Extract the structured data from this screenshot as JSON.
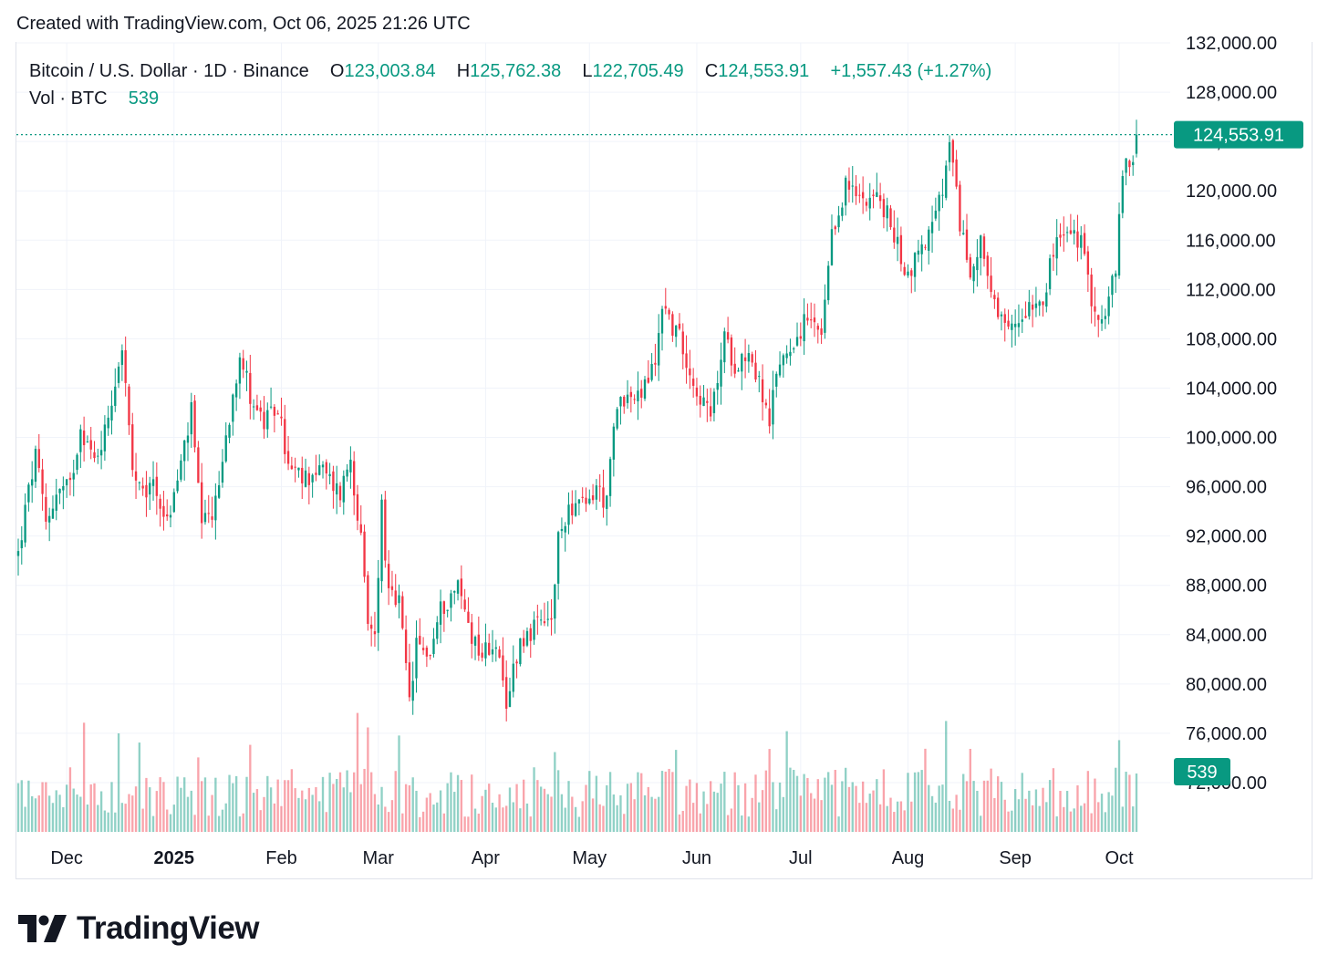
{
  "header": {
    "created_text": "Created with TradingView.com, Oct 06, 2025 21:26 UTC"
  },
  "legend": {
    "symbol": "Bitcoin / U.S. Dollar · 1D · Binance",
    "open_label": "O",
    "open": "123,003.84",
    "high_label": "H",
    "high": "125,762.38",
    "low_label": "L",
    "low": "122,705.49",
    "close_label": "C",
    "close": "124,553.91",
    "change": "+1,557.43 (+1.27%)",
    "vol_label": "Vol · BTC",
    "vol": "539"
  },
  "colors": {
    "up": "#089981",
    "down": "#f23645",
    "grid": "#f0f3fa",
    "text": "#131722"
  },
  "branding": {
    "name": "TradingView",
    "icon": "tradingview-logo-icon"
  },
  "chart_data": {
    "type": "candlestick",
    "title": "Bitcoin / U.S. Dollar · 1D · Binance",
    "x_range": [
      "2024-11-17",
      "2025-10-06"
    ],
    "ylim": [
      68000,
      132000
    ],
    "y_ticks": [
      "72,000.00",
      "76,000.00",
      "80,000.00",
      "84,000.00",
      "88,000.00",
      "92,000.00",
      "96,000.00",
      "100,000.00",
      "104,000.00",
      "108,000.00",
      "112,000.00",
      "116,000.00",
      "120,000.00",
      "124,000.00",
      "128,000.00",
      "132,000.00"
    ],
    "y_tick_values": [
      72000,
      76000,
      80000,
      84000,
      88000,
      92000,
      96000,
      100000,
      104000,
      108000,
      112000,
      116000,
      120000,
      124000,
      128000,
      132000
    ],
    "x_ticks": [
      {
        "label": "Dec",
        "date": "2024-12-01",
        "bold": false
      },
      {
        "label": "2025",
        "date": "2025-01-01",
        "bold": true
      },
      {
        "label": "Feb",
        "date": "2025-02-01",
        "bold": false
      },
      {
        "label": "Mar",
        "date": "2025-03-01",
        "bold": false
      },
      {
        "label": "Apr",
        "date": "2025-04-01",
        "bold": false
      },
      {
        "label": "May",
        "date": "2025-05-01",
        "bold": false
      },
      {
        "label": "Jun",
        "date": "2025-06-01",
        "bold": false
      },
      {
        "label": "Jul",
        "date": "2025-07-01",
        "bold": false
      },
      {
        "label": "Aug",
        "date": "2025-08-01",
        "bold": false
      },
      {
        "label": "Sep",
        "date": "2025-09-01",
        "bold": false
      },
      {
        "label": "Oct",
        "date": "2025-10-01",
        "bold": false
      }
    ],
    "last_price": 124553.91,
    "last_price_label": "124,553.91",
    "last_volume": 539,
    "last_volume_label": "539",
    "close_path": [
      [
        "2024-11-17",
        90500
      ],
      [
        "2024-11-19",
        94000
      ],
      [
        "2024-11-22",
        98500
      ],
      [
        "2024-11-25",
        93000
      ],
      [
        "2024-11-28",
        95500
      ],
      [
        "2024-12-02",
        96000
      ],
      [
        "2024-12-05",
        101000
      ],
      [
        "2024-12-09",
        98000
      ],
      [
        "2024-12-12",
        100500
      ],
      [
        "2024-12-16",
        106000
      ],
      [
        "2024-12-17",
        107500
      ],
      [
        "2024-12-20",
        97000
      ],
      [
        "2024-12-23",
        95000
      ],
      [
        "2024-12-26",
        96500
      ],
      [
        "2024-12-30",
        93000
      ],
      [
        "2025-01-02",
        96500
      ],
      [
        "2025-01-06",
        102000
      ],
      [
        "2025-01-09",
        92500
      ],
      [
        "2025-01-13",
        94500
      ],
      [
        "2025-01-16",
        100000
      ],
      [
        "2025-01-20",
        107000
      ],
      [
        "2025-01-23",
        103500
      ],
      [
        "2025-01-27",
        101000
      ],
      [
        "2025-01-31",
        102500
      ],
      [
        "2025-02-03",
        97500
      ],
      [
        "2025-02-07",
        96500
      ],
      [
        "2025-02-12",
        97500
      ],
      [
        "2025-02-18",
        95500
      ],
      [
        "2025-02-21",
        98500
      ],
      [
        "2025-02-24",
        91500
      ],
      [
        "2025-02-26",
        84500
      ],
      [
        "2025-02-28",
        84000
      ],
      [
        "2025-03-02",
        94500
      ],
      [
        "2025-03-04",
        87000
      ],
      [
        "2025-03-07",
        86500
      ],
      [
        "2025-03-10",
        78500
      ],
      [
        "2025-03-12",
        83000
      ],
      [
        "2025-03-16",
        82500
      ],
      [
        "2025-03-19",
        86000
      ],
      [
        "2025-03-24",
        88000
      ],
      [
        "2025-03-28",
        84000
      ],
      [
        "2025-03-31",
        82500
      ],
      [
        "2025-04-04",
        83500
      ],
      [
        "2025-04-07",
        77500
      ],
      [
        "2025-04-09",
        81500
      ],
      [
        "2025-04-11",
        83500
      ],
      [
        "2025-04-15",
        84500
      ],
      [
        "2025-04-20",
        85000
      ],
      [
        "2025-04-22",
        91500
      ],
      [
        "2025-04-25",
        94500
      ],
      [
        "2025-04-30",
        94300
      ],
      [
        "2025-05-03",
        96000
      ],
      [
        "2025-05-06",
        94500
      ],
      [
        "2025-05-08",
        100500
      ],
      [
        "2025-05-10",
        103500
      ],
      [
        "2025-05-15",
        103000
      ],
      [
        "2025-05-20",
        106000
      ],
      [
        "2025-05-22",
        111000
      ],
      [
        "2025-05-25",
        109000
      ],
      [
        "2025-05-28",
        107500
      ],
      [
        "2025-05-31",
        104500
      ],
      [
        "2025-06-05",
        101500
      ],
      [
        "2025-06-09",
        108000
      ],
      [
        "2025-06-12",
        106000
      ],
      [
        "2025-06-16",
        107000
      ],
      [
        "2025-06-20",
        103500
      ],
      [
        "2025-06-22",
        100500
      ],
      [
        "2025-06-24",
        105500
      ],
      [
        "2025-06-28",
        107500
      ],
      [
        "2025-07-03",
        109500
      ],
      [
        "2025-07-07",
        108000
      ],
      [
        "2025-07-10",
        116000
      ],
      [
        "2025-07-14",
        120500
      ],
      [
        "2025-07-17",
        119500
      ],
      [
        "2025-07-22",
        119800
      ],
      [
        "2025-07-26",
        118000
      ],
      [
        "2025-08-01",
        113000
      ],
      [
        "2025-08-03",
        114500
      ],
      [
        "2025-08-08",
        117000
      ],
      [
        "2025-08-11",
        120000
      ],
      [
        "2025-08-13",
        123500
      ],
      [
        "2025-08-16",
        117500
      ],
      [
        "2025-08-19",
        113000
      ],
      [
        "2025-08-22",
        116500
      ],
      [
        "2025-08-25",
        111000
      ],
      [
        "2025-08-29",
        108500
      ],
      [
        "2025-09-01",
        109000
      ],
      [
        "2025-09-05",
        111000
      ],
      [
        "2025-09-09",
        111500
      ],
      [
        "2025-09-13",
        116000
      ],
      [
        "2025-09-17",
        116500
      ],
      [
        "2025-09-20",
        115800
      ],
      [
        "2025-09-22",
        112500
      ],
      [
        "2025-09-25",
        109500
      ],
      [
        "2025-09-27",
        109500
      ],
      [
        "2025-09-30",
        114000
      ],
      [
        "2025-10-02",
        120500
      ],
      [
        "2025-10-03",
        122500
      ],
      [
        "2025-10-05",
        123000
      ],
      [
        "2025-10-06",
        124553.91
      ]
    ]
  }
}
